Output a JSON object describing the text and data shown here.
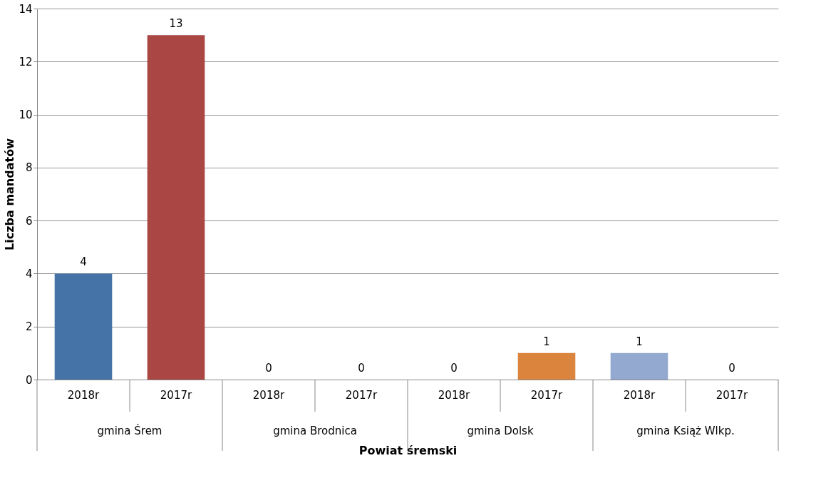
{
  "chart_data": {
    "type": "bar",
    "categories": [
      "2018r",
      "2017r",
      "2018r",
      "2017r",
      "2018r",
      "2017r",
      "2018r",
      "2017r"
    ],
    "values": [
      4,
      13,
      0,
      0,
      0,
      1,
      1,
      0
    ],
    "colors": [
      "#4572a7",
      "#aa4643",
      "#89a54e",
      "#71588f",
      "#4198af",
      "#db843d",
      "#93a9cf",
      "#d19392"
    ],
    "xlabel": "Powiat śremski",
    "ylabel": "Liczba mandatów",
    "annotations": [
      "gmina Śrem",
      "gmina Brodnica",
      "gmina Dolsk",
      "gmina Książ Wlkp."
    ],
    "ylim": [
      0,
      14
    ],
    "yticks": [
      0,
      2,
      4,
      6,
      8,
      10,
      12,
      14
    ],
    "grid": "y",
    "data_labels": true
  }
}
